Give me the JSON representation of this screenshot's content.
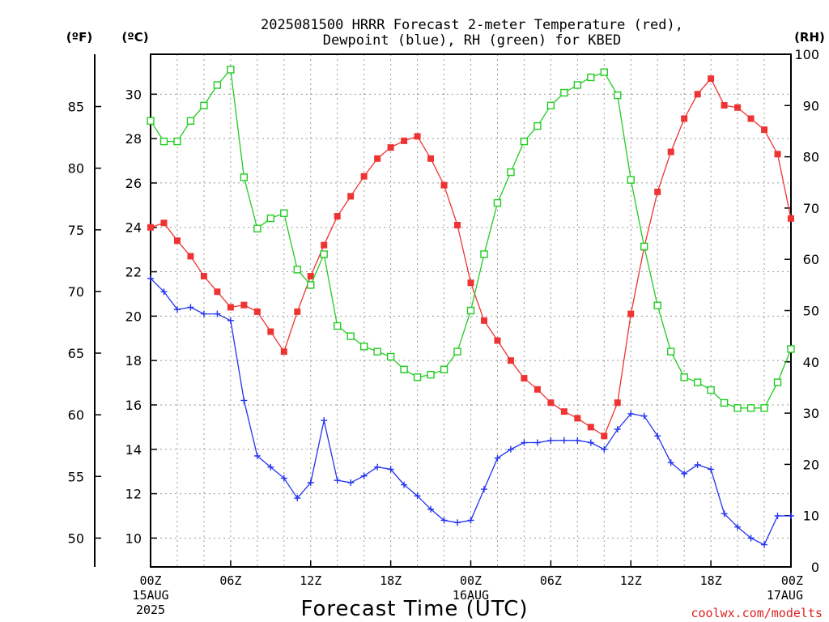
{
  "chart_data": {
    "type": "line",
    "title_line1": "2025081500 HRRR Forecast 2-meter Temperature (red),",
    "title_line2": "Dewpoint (blue), RH (green) for KBED",
    "xlabel": "Forecast Time (UTC)",
    "unit_f": "(ºF)",
    "unit_c": "(ºC)",
    "unit_rh": "(RH)",
    "credit": "coolwx.com/modelts",
    "grid": true,
    "xlim": [
      0,
      48
    ],
    "ylim_c": [
      8.7,
      31.8
    ],
    "ylim_rh": [
      0,
      100
    ],
    "f_ticks": [
      "50",
      "55",
      "60",
      "65",
      "70",
      "75",
      "80",
      "85"
    ],
    "c_ticks": [
      "10",
      "12",
      "14",
      "16",
      "18",
      "20",
      "22",
      "24",
      "26",
      "28",
      "30"
    ],
    "rh_ticks": [
      "0",
      "10",
      "20",
      "30",
      "40",
      "50",
      "60",
      "70",
      "80",
      "90",
      "100"
    ],
    "x_ticks": [
      {
        "hour": 0,
        "label": "00Z",
        "sub1": "15AUG",
        "sub2": "2025"
      },
      {
        "hour": 6,
        "label": "06Z",
        "sub1": "",
        "sub2": ""
      },
      {
        "hour": 12,
        "label": "12Z",
        "sub1": "",
        "sub2": ""
      },
      {
        "hour": 18,
        "label": "18Z",
        "sub1": "",
        "sub2": ""
      },
      {
        "hour": 24,
        "label": "00Z",
        "sub1": "16AUG",
        "sub2": ""
      },
      {
        "hour": 30,
        "label": "06Z",
        "sub1": "",
        "sub2": ""
      },
      {
        "hour": 36,
        "label": "12Z",
        "sub1": "",
        "sub2": ""
      },
      {
        "hour": 42,
        "label": "18Z",
        "sub1": "",
        "sub2": ""
      },
      {
        "hour": 48,
        "label": "00Z",
        "sub1": "17AUG",
        "sub2": ""
      }
    ],
    "series": [
      {
        "name": "Temperature",
        "color": "#ee3333",
        "marker": "filled-square",
        "axis": "c",
        "values": [
          24.0,
          24.2,
          23.4,
          22.7,
          21.8,
          21.1,
          20.4,
          20.5,
          20.2,
          19.3,
          18.4,
          20.2,
          21.8,
          23.2,
          24.5,
          25.4,
          26.3,
          27.1,
          27.6,
          27.9,
          28.1,
          27.1,
          25.9,
          24.1,
          21.5,
          19.8,
          18.9,
          18.0,
          17.2,
          16.7,
          16.1,
          15.7,
          15.4,
          15.0,
          14.6,
          16.1,
          20.1,
          23.1,
          25.6,
          27.4,
          28.9,
          30.0,
          30.7,
          29.5,
          29.4,
          28.9,
          28.4,
          27.3,
          24.4
        ]
      },
      {
        "name": "Dewpoint",
        "color": "#2233ee",
        "marker": "plus",
        "axis": "c",
        "values": [
          21.7,
          21.1,
          20.3,
          20.4,
          20.1,
          20.1,
          19.8,
          16.2,
          13.7,
          13.2,
          12.7,
          11.8,
          12.5,
          15.3,
          12.6,
          12.5,
          12.8,
          13.2,
          13.1,
          12.4,
          11.9,
          11.3,
          10.8,
          10.7,
          10.8,
          12.2,
          13.6,
          14.0,
          14.3,
          14.3,
          14.4,
          14.4,
          14.4,
          14.3,
          14.0,
          14.9,
          15.6,
          15.5,
          14.6,
          13.4,
          12.9,
          13.3,
          13.1,
          11.1,
          10.5,
          10.0,
          9.7,
          11.0,
          11.0
        ]
      },
      {
        "name": "RH",
        "color": "#22cc22",
        "marker": "open-square",
        "axis": "rh",
        "values": [
          87,
          83,
          83,
          87,
          90,
          94,
          97,
          76,
          66,
          68,
          69,
          58,
          55,
          61,
          47,
          45,
          43,
          42,
          41,
          38.5,
          37,
          37.5,
          38.5,
          42,
          50,
          61,
          71,
          77,
          83,
          86,
          90,
          92.5,
          94,
          95.5,
          96.5,
          92,
          75.5,
          62.5,
          51,
          42,
          37,
          36,
          34.5,
          32,
          31,
          31,
          31,
          36,
          42.5
        ]
      }
    ]
  }
}
